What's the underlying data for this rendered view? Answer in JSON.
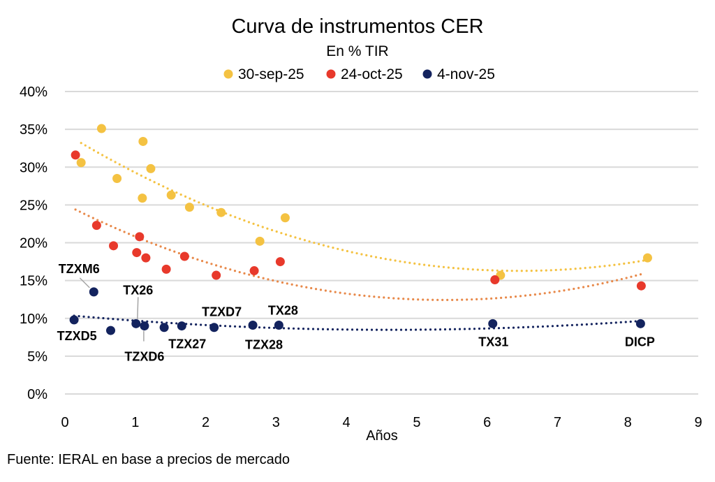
{
  "chart_data": {
    "type": "scatter",
    "title": "Curva de instrumentos CER",
    "subtitle": "En % TIR",
    "xlabel": "Años",
    "ylabel": "",
    "xlim": [
      0,
      9
    ],
    "ylim": [
      0,
      40
    ],
    "x_ticks": [
      "0",
      "1",
      "2",
      "3",
      "4",
      "5",
      "6",
      "7",
      "8",
      "9"
    ],
    "y_ticks": [
      "0%",
      "5%",
      "10%",
      "15%",
      "20%",
      "25%",
      "30%",
      "35%",
      "40%"
    ],
    "grid": "horizontal",
    "legend_position": "top",
    "trendline": "polynomial",
    "series": [
      {
        "name": "30-sep-25",
        "color": "#F4C242",
        "trend_color": "#F4C242",
        "points": [
          [
            0.52,
            35.1
          ],
          [
            0.23,
            30.6
          ],
          [
            1.11,
            33.4
          ],
          [
            1.22,
            29.8
          ],
          [
            0.74,
            28.5
          ],
          [
            1.1,
            25.9
          ],
          [
            1.51,
            26.3
          ],
          [
            1.77,
            24.7
          ],
          [
            2.22,
            24.0
          ],
          [
            3.13,
            23.3
          ],
          [
            2.77,
            20.2
          ],
          [
            6.19,
            15.7
          ],
          [
            8.28,
            18.0
          ]
        ]
      },
      {
        "name": "24-oct-25",
        "color": "#E8392B",
        "trend_color": "#E8894A",
        "points": [
          [
            0.15,
            31.6
          ],
          [
            0.45,
            22.3
          ],
          [
            0.69,
            19.6
          ],
          [
            1.06,
            20.8
          ],
          [
            1.02,
            18.7
          ],
          [
            1.15,
            18.0
          ],
          [
            1.44,
            16.5
          ],
          [
            1.7,
            18.2
          ],
          [
            2.15,
            15.7
          ],
          [
            2.69,
            16.3
          ],
          [
            3.06,
            17.5
          ],
          [
            6.11,
            15.1
          ],
          [
            8.19,
            14.3
          ]
        ]
      },
      {
        "name": "4-nov-25",
        "color": "#13235E",
        "trend_color": "#13235E",
        "points": [
          [
            0.13,
            9.8
          ],
          [
            0.41,
            13.5
          ],
          [
            0.65,
            8.4
          ],
          [
            1.01,
            9.3
          ],
          [
            1.13,
            9.0
          ],
          [
            1.41,
            8.8
          ],
          [
            1.66,
            9.0
          ],
          [
            2.12,
            8.8
          ],
          [
            2.67,
            9.1
          ],
          [
            3.04,
            9.1
          ],
          [
            6.08,
            9.3
          ],
          [
            8.18,
            9.3
          ]
        ],
        "labels": [
          "TZXD5",
          "TZXM6",
          "",
          "TX26",
          "TZXD6",
          "",
          "TZX27",
          "TZXD7",
          "TZX28",
          "TX28",
          "TX31",
          "DICP"
        ]
      }
    ]
  },
  "source": "Fuente: IERAL en base a precios de mercado"
}
